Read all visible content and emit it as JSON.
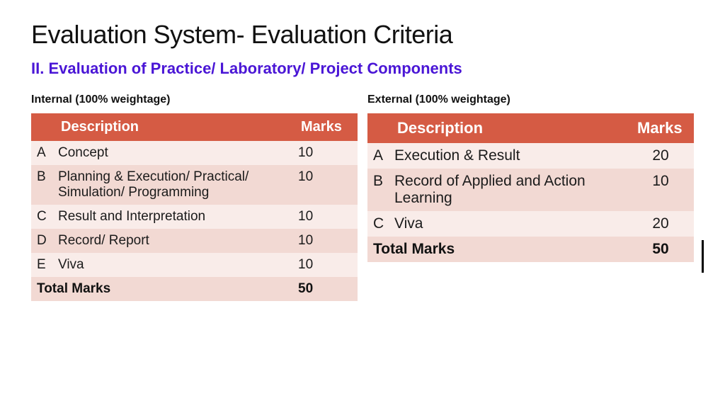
{
  "title": "Evaluation System- Evaluation Criteria",
  "subtitle": "II. Evaluation of Practice/ Laboratory/ Project Components",
  "subtitle_color": "#4a16d6",
  "title_color": "#111111",
  "header_bg": "#d55b44",
  "header_fg": "#ffffff",
  "row_even_bg": "#f9ece9",
  "row_odd_bg": "#f2d9d3",
  "row_fg": "#1b1b1b",
  "internal": {
    "caption": "Internal (100% weightage)",
    "head_desc": "Description",
    "head_marks": "Marks",
    "header_fontsize": 20,
    "cell_fontsize": 19,
    "marks_align": "left",
    "rows": [
      {
        "letter": "A",
        "desc": "Concept",
        "marks": "10"
      },
      {
        "letter": "B",
        "desc": "Planning & Execution/ Practical/ Simulation/ Programming",
        "marks": "10"
      },
      {
        "letter": "C",
        "desc": "Result and Interpretation",
        "marks": "10"
      },
      {
        "letter": "D",
        "desc": "Record/ Report",
        "marks": "10"
      },
      {
        "letter": "E",
        "desc": "Viva",
        "marks": "10"
      }
    ],
    "total_label": "Total Marks",
    "total_marks": "50"
  },
  "external": {
    "caption": "External (100% weightage)",
    "head_desc": "Description",
    "head_marks": "Marks",
    "header_fontsize": 22,
    "cell_fontsize": 21,
    "marks_align": "center",
    "rows": [
      {
        "letter": "A",
        "desc": "Execution & Result",
        "marks": "20"
      },
      {
        "letter": "B",
        "desc": "Record of Applied and Action Learning",
        "marks": "10"
      },
      {
        "letter": "C",
        "desc": "Viva",
        "marks": "20"
      }
    ],
    "total_label": "Total Marks",
    "total_marks": "50"
  }
}
